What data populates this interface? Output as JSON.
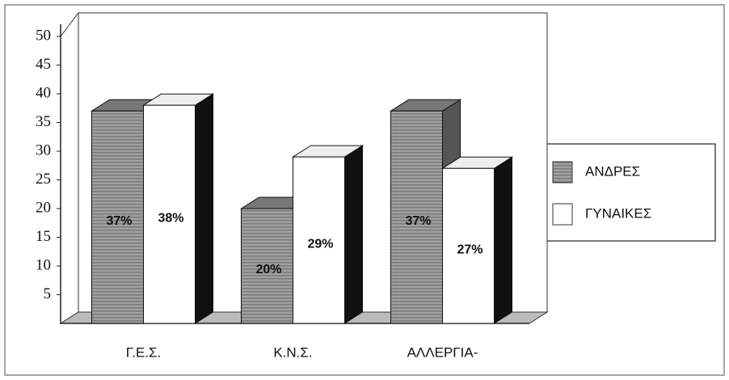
{
  "chart_data": {
    "type": "bar3d",
    "categories": [
      "Γ.Ε.Σ.",
      "Κ.Ν.Σ.",
      "ΑΛΛΕΡΓΙΑ-"
    ],
    "series": [
      {
        "name": "ΑΝΔΡΕΣ",
        "color": "#9a9a9a",
        "values": [
          37,
          20,
          37
        ],
        "value_labels": [
          "37%",
          "20%",
          "37%"
        ]
      },
      {
        "name": "ΓΥΝΑΙΚΕΣ",
        "color": "#ffffff",
        "values": [
          38,
          29,
          27
        ],
        "value_labels": [
          "38%",
          "29%",
          "27%"
        ]
      }
    ],
    "ylim": [
      0,
      50
    ],
    "yticks": [
      5,
      10,
      15,
      20,
      25,
      30,
      35,
      40,
      45,
      50
    ],
    "legend": "right"
  }
}
